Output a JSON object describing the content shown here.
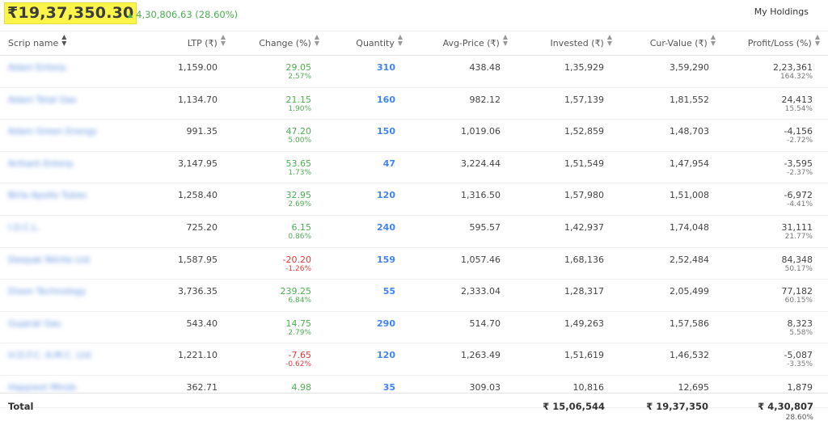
{
  "summary": {
    "current_value": "₹19,37,350.30",
    "day_change": "4,30,806.63 (28.60%)",
    "holdings_dropdown": "My Holdings"
  },
  "columns": {
    "scrip": "Scrip name",
    "ltp": "LTP (₹)",
    "change": "Change (%)",
    "quantity": "Quantity",
    "avg_price": "Avg-Price (₹)",
    "invested": "Invested (₹)",
    "cur_value": "Cur-Value (₹)",
    "pl": "Profit/Loss (%)"
  },
  "rows": [
    {
      "scrip": "Adani Enterp.",
      "ltp": "1,159.00",
      "change": "29.05",
      "change_pct": "2.57%",
      "direction": "up",
      "qty": "310",
      "avg": "438.48",
      "invested": "1,35,929",
      "cur": "3,59,290",
      "pl": "2,23,361",
      "pl_pct": "164.32%"
    },
    {
      "scrip": "Adani Total Gas",
      "ltp": "1,134.70",
      "change": "21.15",
      "change_pct": "1.90%",
      "direction": "up",
      "qty": "160",
      "avg": "982.12",
      "invested": "1,57,139",
      "cur": "1,81,552",
      "pl": "24,413",
      "pl_pct": "15.54%"
    },
    {
      "scrip": "Adani Green Energy",
      "ltp": "991.35",
      "change": "47.20",
      "change_pct": "5.00%",
      "direction": "up",
      "qty": "150",
      "avg": "1,019.06",
      "invested": "1,52,859",
      "cur": "1,48,703",
      "pl": "-4,156",
      "pl_pct": "-2.72%"
    },
    {
      "scrip": "Arihant Enterp.",
      "ltp": "3,147.95",
      "change": "53.65",
      "change_pct": "1.73%",
      "direction": "up",
      "qty": "47",
      "avg": "3,224.44",
      "invested": "1,51,549",
      "cur": "1,47,954",
      "pl": "-3,595",
      "pl_pct": "-2.37%"
    },
    {
      "scrip": "Birla Apollo Tubes",
      "ltp": "1,258.40",
      "change": "32.95",
      "change_pct": "2.69%",
      "direction": "up",
      "qty": "120",
      "avg": "1,316.50",
      "invested": "1,57,980",
      "cur": "1,51,008",
      "pl": "-6,972",
      "pl_pct": "-4.41%"
    },
    {
      "scrip": "I.O.C.L.",
      "ltp": "725.20",
      "change": "6.15",
      "change_pct": "0.86%",
      "direction": "up",
      "qty": "240",
      "avg": "595.57",
      "invested": "1,42,937",
      "cur": "1,74,048",
      "pl": "31,111",
      "pl_pct": "21.77%"
    },
    {
      "scrip": "Deepak Nitrite Ltd",
      "ltp": "1,587.95",
      "change": "-20.20",
      "change_pct": "-1.26%",
      "direction": "down",
      "qty": "159",
      "avg": "1,057.46",
      "invested": "1,68,136",
      "cur": "2,52,484",
      "pl": "84,348",
      "pl_pct": "50.17%"
    },
    {
      "scrip": "Dixon Technology",
      "ltp": "3,736.35",
      "change": "239.25",
      "change_pct": "6.84%",
      "direction": "up",
      "qty": "55",
      "avg": "2,333.04",
      "invested": "1,28,317",
      "cur": "2,05,499",
      "pl": "77,182",
      "pl_pct": "60.15%"
    },
    {
      "scrip": "Gujarat Gas",
      "ltp": "543.40",
      "change": "14.75",
      "change_pct": "2.79%",
      "direction": "up",
      "qty": "290",
      "avg": "514.70",
      "invested": "1,49,263",
      "cur": "1,57,586",
      "pl": "8,323",
      "pl_pct": "5.58%"
    },
    {
      "scrip": "H.D.F.C. A.M.C. Ltd",
      "ltp": "1,221.10",
      "change": "-7.65",
      "change_pct": "-0.62%",
      "direction": "down",
      "qty": "120",
      "avg": "1,263.49",
      "invested": "1,51,619",
      "cur": "1,46,532",
      "pl": "-5,087",
      "pl_pct": "-3.35%"
    },
    {
      "scrip": "Happiest Minds",
      "ltp": "362.71",
      "change": "4.98",
      "change_pct": "",
      "direction": "up",
      "qty": "35",
      "avg": "309.03",
      "invested": "10,816",
      "cur": "12,695",
      "pl": "1,879",
      "pl_pct": ""
    }
  ],
  "footer": {
    "label": "Total",
    "invested": "₹ 15,06,544",
    "cur_value": "₹ 19,37,350",
    "pl": "₹ 4,30,807",
    "pl_pct": "28.60%"
  },
  "colors": {
    "highlight": "#fbf449",
    "positive": "#4caf50",
    "negative": "#e53935",
    "link": "#4184f3"
  },
  "icons": {
    "gain_arrow": "▲",
    "sort": "⇕"
  }
}
